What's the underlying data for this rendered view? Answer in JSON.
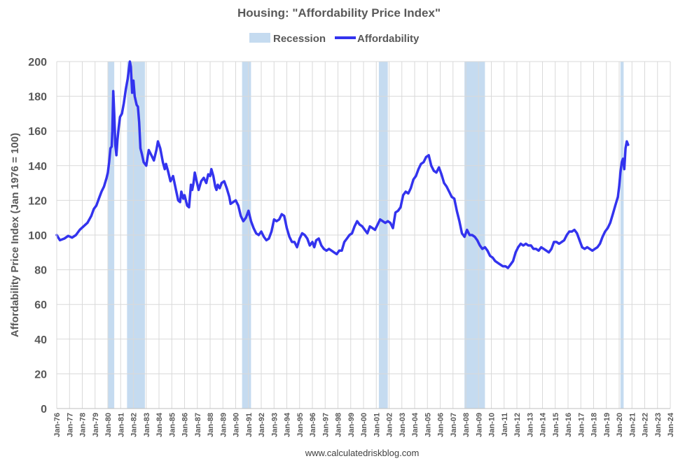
{
  "chart_data": {
    "type": "line",
    "title": "Housing: \"Affordability Price Index\"",
    "ylabel": "Affordability Price Index (Jan 1976 = 100)",
    "xlabel": "",
    "ylim": [
      0,
      200
    ],
    "yticks": [
      0,
      20,
      40,
      60,
      80,
      100,
      120,
      140,
      160,
      180,
      200
    ],
    "xlim": [
      1976,
      2024
    ],
    "xticks": [
      "Jan-76",
      "Jan-77",
      "Jan-78",
      "Jan-79",
      "Jan-80",
      "Jan-81",
      "Jan-82",
      "Jan-83",
      "Jan-84",
      "Jan-85",
      "Jan-86",
      "Jan-87",
      "Jan-88",
      "Jan-89",
      "Jan-90",
      "Jan-91",
      "Jan-92",
      "Jan-93",
      "Jan-94",
      "Jan-95",
      "Jan-96",
      "Jan-97",
      "Jan-98",
      "Jan-99",
      "Jan-00",
      "Jan-01",
      "Jan-02",
      "Jan-03",
      "Jan-04",
      "Jan-05",
      "Jan-06",
      "Jan-07",
      "Jan-08",
      "Jan-09",
      "Jan-10",
      "Jan-11",
      "Jan-12",
      "Jan-13",
      "Jan-14",
      "Jan-15",
      "Jan-16",
      "Jan-17",
      "Jan-18",
      "Jan-19",
      "Jan-20",
      "Jan-21",
      "Jan-22",
      "Jan-23",
      "Jan-24"
    ],
    "grid": true,
    "legend_position": "top",
    "legend": [
      {
        "name": "Recession",
        "color": "#c5dbf0",
        "kind": "band"
      },
      {
        "name": "Affordability",
        "color": "#3333ee",
        "kind": "line"
      }
    ],
    "recessions": [
      [
        1980.0,
        1980.5
      ],
      [
        1981.5,
        1982.9
      ],
      [
        1990.5,
        1991.2
      ],
      [
        2001.2,
        2001.9
      ],
      [
        2007.9,
        2009.5
      ],
      [
        2020.1,
        2020.35
      ]
    ],
    "series": [
      {
        "name": "Affordability",
        "color": "#3333ee",
        "points": [
          [
            1976.0,
            100
          ],
          [
            1976.25,
            97
          ],
          [
            1976.6,
            98
          ],
          [
            1976.9,
            99.5
          ],
          [
            1977.2,
            98.5
          ],
          [
            1977.5,
            100
          ],
          [
            1977.8,
            103
          ],
          [
            1978.1,
            105
          ],
          [
            1978.4,
            107
          ],
          [
            1978.7,
            111
          ],
          [
            1978.9,
            115
          ],
          [
            1979.1,
            117
          ],
          [
            1979.3,
            121
          ],
          [
            1979.5,
            125
          ],
          [
            1979.7,
            128
          ],
          [
            1979.9,
            133
          ],
          [
            1980.0,
            136
          ],
          [
            1980.1,
            142
          ],
          [
            1980.2,
            150
          ],
          [
            1980.3,
            151
          ],
          [
            1980.35,
            160
          ],
          [
            1980.42,
            183
          ],
          [
            1980.5,
            170
          ],
          [
            1980.58,
            152
          ],
          [
            1980.67,
            146
          ],
          [
            1980.75,
            155
          ],
          [
            1980.85,
            162
          ],
          [
            1980.95,
            168
          ],
          [
            1981.1,
            170
          ],
          [
            1981.25,
            176
          ],
          [
            1981.4,
            184
          ],
          [
            1981.55,
            190
          ],
          [
            1981.65,
            196
          ],
          [
            1981.72,
            200
          ],
          [
            1981.8,
            197
          ],
          [
            1981.9,
            182
          ],
          [
            1982.0,
            189
          ],
          [
            1982.1,
            180
          ],
          [
            1982.25,
            175
          ],
          [
            1982.35,
            174
          ],
          [
            1982.45,
            165
          ],
          [
            1982.55,
            150
          ],
          [
            1982.65,
            147
          ],
          [
            1982.8,
            142
          ],
          [
            1983.0,
            140
          ],
          [
            1983.2,
            149
          ],
          [
            1983.4,
            146
          ],
          [
            1983.6,
            143
          ],
          [
            1983.8,
            149
          ],
          [
            1983.92,
            154
          ],
          [
            1984.1,
            150
          ],
          [
            1984.3,
            142
          ],
          [
            1984.45,
            138
          ],
          [
            1984.55,
            141
          ],
          [
            1984.7,
            137
          ],
          [
            1984.9,
            131
          ],
          [
            1985.1,
            134
          ],
          [
            1985.3,
            127
          ],
          [
            1985.5,
            120
          ],
          [
            1985.65,
            119
          ],
          [
            1985.75,
            125
          ],
          [
            1985.9,
            121
          ],
          [
            1986.0,
            123
          ],
          [
            1986.2,
            117
          ],
          [
            1986.35,
            116
          ],
          [
            1986.5,
            129
          ],
          [
            1986.6,
            126
          ],
          [
            1986.7,
            130
          ],
          [
            1986.8,
            136
          ],
          [
            1986.95,
            131
          ],
          [
            1987.1,
            126
          ],
          [
            1987.3,
            131
          ],
          [
            1987.5,
            133
          ],
          [
            1987.7,
            130
          ],
          [
            1987.85,
            135
          ],
          [
            1988.0,
            134
          ],
          [
            1988.1,
            138
          ],
          [
            1988.25,
            134
          ],
          [
            1988.4,
            128
          ],
          [
            1988.5,
            126
          ],
          [
            1988.6,
            129
          ],
          [
            1988.75,
            127
          ],
          [
            1988.9,
            130
          ],
          [
            1989.1,
            131
          ],
          [
            1989.3,
            127
          ],
          [
            1989.5,
            122
          ],
          [
            1989.6,
            118
          ],
          [
            1989.8,
            119
          ],
          [
            1990.0,
            120
          ],
          [
            1990.2,
            117
          ],
          [
            1990.4,
            111
          ],
          [
            1990.6,
            108
          ],
          [
            1990.8,
            110
          ],
          [
            1991.0,
            114
          ],
          [
            1991.2,
            108
          ],
          [
            1991.4,
            104
          ],
          [
            1991.6,
            101
          ],
          [
            1991.8,
            100
          ],
          [
            1992.0,
            102
          ],
          [
            1992.2,
            99
          ],
          [
            1992.4,
            97
          ],
          [
            1992.6,
            98
          ],
          [
            1992.8,
            102
          ],
          [
            1993.0,
            109
          ],
          [
            1993.2,
            108
          ],
          [
            1993.4,
            109
          ],
          [
            1993.6,
            112
          ],
          [
            1993.8,
            111
          ],
          [
            1994.0,
            104
          ],
          [
            1994.2,
            99
          ],
          [
            1994.4,
            96
          ],
          [
            1994.6,
            96
          ],
          [
            1994.8,
            93
          ],
          [
            1995.0,
            98
          ],
          [
            1995.2,
            101
          ],
          [
            1995.4,
            100
          ],
          [
            1995.6,
            98
          ],
          [
            1995.8,
            94
          ],
          [
            1996.0,
            96
          ],
          [
            1996.15,
            93
          ],
          [
            1996.3,
            97
          ],
          [
            1996.5,
            98
          ],
          [
            1996.7,
            94
          ],
          [
            1996.9,
            92
          ],
          [
            1997.1,
            91
          ],
          [
            1997.3,
            92
          ],
          [
            1997.5,
            91
          ],
          [
            1997.7,
            90
          ],
          [
            1997.9,
            89
          ],
          [
            1998.1,
            91
          ],
          [
            1998.3,
            91
          ],
          [
            1998.5,
            96
          ],
          [
            1998.7,
            98
          ],
          [
            1998.9,
            100
          ],
          [
            1999.1,
            101
          ],
          [
            1999.3,
            105
          ],
          [
            1999.5,
            108
          ],
          [
            1999.7,
            106
          ],
          [
            1999.9,
            105
          ],
          [
            2000.1,
            103
          ],
          [
            2000.3,
            101
          ],
          [
            2000.5,
            105
          ],
          [
            2000.7,
            104
          ],
          [
            2000.9,
            103
          ],
          [
            2001.1,
            106
          ],
          [
            2001.3,
            109
          ],
          [
            2001.5,
            108
          ],
          [
            2001.7,
            107
          ],
          [
            2001.9,
            108
          ],
          [
            2002.1,
            107
          ],
          [
            2002.3,
            104
          ],
          [
            2002.5,
            113
          ],
          [
            2002.7,
            114
          ],
          [
            2002.9,
            116
          ],
          [
            2003.1,
            123
          ],
          [
            2003.3,
            125
          ],
          [
            2003.5,
            124
          ],
          [
            2003.7,
            127
          ],
          [
            2003.9,
            132
          ],
          [
            2004.1,
            134
          ],
          [
            2004.3,
            138
          ],
          [
            2004.5,
            141
          ],
          [
            2004.7,
            142
          ],
          [
            2004.9,
            145
          ],
          [
            2005.1,
            146
          ],
          [
            2005.3,
            140
          ],
          [
            2005.5,
            137
          ],
          [
            2005.7,
            136
          ],
          [
            2005.9,
            139
          ],
          [
            2006.1,
            135
          ],
          [
            2006.3,
            130
          ],
          [
            2006.5,
            128
          ],
          [
            2006.7,
            125
          ],
          [
            2006.9,
            122
          ],
          [
            2007.1,
            121
          ],
          [
            2007.3,
            114
          ],
          [
            2007.5,
            108
          ],
          [
            2007.7,
            101
          ],
          [
            2007.9,
            99
          ],
          [
            2008.1,
            103
          ],
          [
            2008.3,
            100
          ],
          [
            2008.5,
            100
          ],
          [
            2008.7,
            99
          ],
          [
            2008.9,
            97
          ],
          [
            2009.1,
            94
          ],
          [
            2009.3,
            92
          ],
          [
            2009.5,
            93
          ],
          [
            2009.7,
            91
          ],
          [
            2009.9,
            88
          ],
          [
            2010.1,
            87
          ],
          [
            2010.3,
            85
          ],
          [
            2010.5,
            84
          ],
          [
            2010.7,
            83
          ],
          [
            2010.9,
            82
          ],
          [
            2011.1,
            82
          ],
          [
            2011.3,
            81
          ],
          [
            2011.5,
            83
          ],
          [
            2011.7,
            85
          ],
          [
            2011.9,
            90
          ],
          [
            2012.1,
            93
          ],
          [
            2012.3,
            95
          ],
          [
            2012.5,
            94
          ],
          [
            2012.7,
            95
          ],
          [
            2012.9,
            94
          ],
          [
            2013.1,
            94
          ],
          [
            2013.3,
            92
          ],
          [
            2013.5,
            92
          ],
          [
            2013.7,
            91
          ],
          [
            2013.9,
            93
          ],
          [
            2014.1,
            92
          ],
          [
            2014.3,
            91
          ],
          [
            2014.5,
            90
          ],
          [
            2014.7,
            92
          ],
          [
            2014.9,
            96
          ],
          [
            2015.1,
            96
          ],
          [
            2015.3,
            95
          ],
          [
            2015.5,
            96
          ],
          [
            2015.7,
            97
          ],
          [
            2015.9,
            100
          ],
          [
            2016.1,
            102
          ],
          [
            2016.3,
            102
          ],
          [
            2016.5,
            103
          ],
          [
            2016.7,
            101
          ],
          [
            2016.9,
            97
          ],
          [
            2017.1,
            93
          ],
          [
            2017.3,
            92
          ],
          [
            2017.5,
            93
          ],
          [
            2017.7,
            92
          ],
          [
            2017.9,
            91
          ],
          [
            2018.1,
            92
          ],
          [
            2018.3,
            93
          ],
          [
            2018.5,
            95
          ],
          [
            2018.7,
            99
          ],
          [
            2018.9,
            102
          ],
          [
            2019.1,
            104
          ],
          [
            2019.3,
            107
          ],
          [
            2019.5,
            112
          ],
          [
            2019.7,
            117
          ],
          [
            2019.9,
            122
          ],
          [
            2020.0,
            128
          ],
          [
            2020.1,
            136
          ],
          [
            2020.2,
            142
          ],
          [
            2020.3,
            144
          ],
          [
            2020.4,
            138
          ],
          [
            2020.5,
            150
          ],
          [
            2020.6,
            154
          ],
          [
            2020.7,
            152
          ]
        ]
      }
    ]
  },
  "credit": "www.calculatedriskblog.com"
}
